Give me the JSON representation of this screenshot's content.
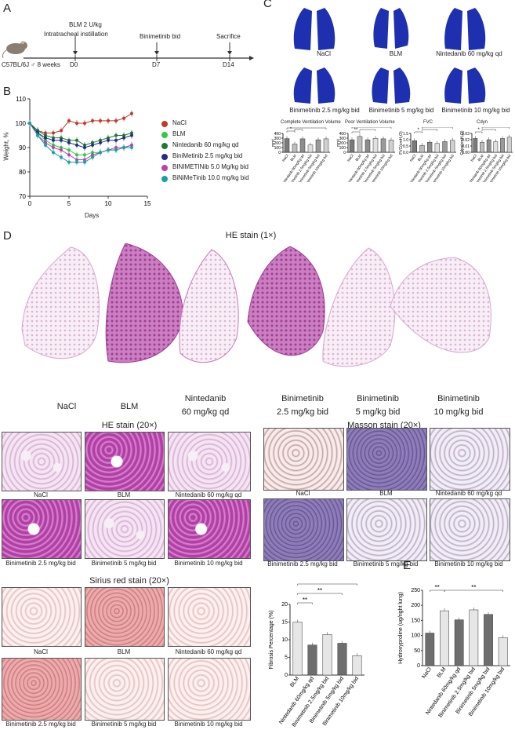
{
  "panels": {
    "A": "A",
    "B": "B",
    "C": "C",
    "D": "D",
    "E": "E"
  },
  "panelA": {
    "dose": "BLM 2 U/kg",
    "instillation": "Intratracheal instillation",
    "treatment": "Binimetinib bid",
    "sacrifice": "Sacrifice",
    "mouse": "C57BL/6J ♂ 8 weeks",
    "ticks": [
      "D0",
      "D7",
      "D14"
    ]
  },
  "panelB": {
    "ylabel": "Weight, %",
    "xlabel": "Days",
    "yticks": [
      "110",
      "100",
      "90",
      "80",
      "70"
    ],
    "xticks": [
      "0",
      "5",
      "10",
      "15"
    ],
    "legend": [
      {
        "label": "NaCl",
        "color": "#c0392b"
      },
      {
        "label": "BLM",
        "color": "#2ecc40"
      },
      {
        "label": "Nintedanib 60 mg/kg qd",
        "color": "#1e7a2e"
      },
      {
        "label": "BiniMetinib 2.5 mg/kg bid",
        "color": "#1f2d8a"
      },
      {
        "label": "BINIMETINib 5.0 Mg/kg bid",
        "color": "#c23bb5"
      },
      {
        "label": "BiNiMeTinib 10.0 mg/kg bid",
        "color": "#17a2a2"
      }
    ]
  },
  "panelC": {
    "lungs": [
      "NaCl",
      "BLM",
      "Nintedanib 60 mg/kg qd",
      "Binimetinib 2.5 mg/kg bid",
      "Binimetinib 5 mg/kg bid",
      "Binimetinib 10 mg/kg bid"
    ],
    "chart_titles": [
      "Complete Ventilation Volume",
      "Poor Ventilation Volume",
      "FVC",
      "Cdyn"
    ],
    "ylabels": [
      "mm³",
      "mm³",
      "FVC(cmH₂O)",
      "Cdyn(cmH₂O)"
    ],
    "xcats": [
      "NaCl",
      "BLM",
      "Nintedanib 60mg/kg qd",
      "Binimetinib 2.5mg/kg bid",
      "Binimetinib 5mg/kg bid",
      "Binimetinib 10mg/kg bid"
    ],
    "yticks_cvv": [
      "400",
      "300",
      "200",
      "100",
      "0"
    ],
    "yticks_pvv": [
      "400",
      "300",
      "200",
      "100",
      "0"
    ],
    "yticks_fvc": [
      "1.5",
      "1.0",
      "0.5",
      "0.0"
    ],
    "yticks_cdyn": [
      "0.03",
      "0.02",
      "0.01",
      "0.00"
    ],
    "stars": [
      "*",
      "*",
      "*",
      "**",
      "*",
      "**",
      "*",
      "**",
      "***",
      "*",
      "*",
      "*"
    ]
  },
  "panelD": {
    "he_title": "HE stain (1×)",
    "groups": [
      "NaCl",
      "BLM",
      "Nintedanib\n60 mg/kg qd",
      "Binimetinib\n2.5 mg/kg bid",
      "Binimetinib\n5 mg/kg bid",
      "Binimetinib\n10 mg/kg bid"
    ],
    "he20": "HE stain (20×)",
    "masson20": "Masson stain (20×)",
    "sirius20": "Sirius red stain (20×)",
    "captions": [
      "NaCl",
      "BLM",
      "Nintedanib 60 mg/kg qd",
      "Binimetinib 2.5 mg/kg bid",
      "Binimetinib 5 mg/kg bid",
      "Binimetinib 10 mg/kg bid"
    ],
    "fib_ylabel": "Fibrosis Percentage (%)",
    "fib_yticks": [
      "20",
      "15",
      "10",
      "5",
      "0"
    ],
    "fib_stars": [
      "****",
      "**",
      "**"
    ]
  },
  "panelE": {
    "ylabel": "Hydroxyproline (ug/right lung)",
    "yticks": [
      "250",
      "200",
      "150",
      "100",
      "50",
      "0"
    ],
    "stars": [
      "**",
      "**"
    ]
  },
  "chart_data": [
    {
      "type": "line",
      "ylabel": "Weight, %",
      "xlabel": "Days",
      "ylim": [
        70,
        110
      ],
      "xlim": [
        0,
        15
      ],
      "x": [
        0,
        1,
        2,
        3,
        4,
        5,
        6,
        7,
        8,
        9,
        10,
        11,
        12,
        13
      ],
      "series": [
        {
          "name": "NaCl",
          "values": [
            100,
            97,
            96,
            96,
            97,
            101,
            100,
            100,
            101,
            101,
            101,
            101,
            102,
            104
          ]
        },
        {
          "name": "BLM",
          "values": [
            100,
            96,
            93,
            91,
            90,
            89,
            87,
            87,
            88,
            88,
            89,
            89,
            90,
            91
          ]
        },
        {
          "name": "Nintedanib 60 mg/kg qd",
          "values": [
            100,
            97,
            95,
            94,
            94,
            93,
            93,
            91,
            92,
            93,
            94,
            95,
            95,
            96
          ]
        },
        {
          "name": "BiniMetinib 2.5 mg/kg bid",
          "values": [
            100,
            96,
            94,
            93,
            93,
            92,
            91,
            90,
            91,
            92,
            93,
            93,
            94,
            95
          ]
        },
        {
          "name": "BINIMETINib 5.0 Mg/kg bid",
          "values": [
            100,
            95,
            92,
            90,
            89,
            87,
            85,
            85,
            87,
            88,
            89,
            90,
            90,
            91
          ]
        },
        {
          "name": "BiNiMeTinib 10.0 mg/kg bid",
          "values": [
            100,
            95,
            91,
            88,
            86,
            84,
            84,
            84,
            86,
            88,
            89,
            89,
            90,
            90
          ]
        }
      ]
    },
    {
      "type": "bar",
      "title": "Complete Ventilation Volume",
      "categories": [
        "NaCl",
        "BLM",
        "Nintedanib 60mg/kg qd",
        "Binimetinib 2.5mg/kg bid",
        "Binimetinib 5mg/kg bid",
        "Binimetinib 10mg/kg bid"
      ],
      "values": [
        290,
        175,
        285,
        155,
        265,
        285
      ],
      "ylim": [
        0,
        400
      ]
    },
    {
      "type": "bar",
      "title": "Poor Ventilation Volume",
      "categories": [
        "NaCl",
        "BLM",
        "Nintedanib 60mg/kg qd",
        "Binimetinib 2.5mg/kg bid",
        "Binimetinib 5mg/kg bid",
        "Binimetinib 10mg/kg bid"
      ],
      "values": [
        265,
        335,
        265,
        295,
        285,
        260
      ],
      "ylim": [
        0,
        400
      ]
    },
    {
      "type": "bar",
      "title": "FVC",
      "categories": [
        "NaCl",
        "BLM",
        "Nintedanib 60mg/kg qd",
        "Binimetinib 2.5mg/kg bid",
        "Binimetinib 5mg/kg bid",
        "Binimetinib 10mg/kg bid"
      ],
      "values": [
        0.92,
        0.55,
        0.8,
        0.7,
        0.85,
        0.95
      ],
      "ylim": [
        0,
        1.5
      ]
    },
    {
      "type": "bar",
      "title": "Cdyn",
      "categories": [
        "NaCl",
        "BLM",
        "Nintedanib 60mg/kg qd",
        "Binimetinib 2.5mg/kg bid",
        "Binimetinib 5mg/kg bid",
        "Binimetinib 10mg/kg bid"
      ],
      "values": [
        0.022,
        0.016,
        0.02,
        0.017,
        0.022,
        0.024
      ],
      "ylim": [
        0,
        0.03
      ]
    },
    {
      "type": "bar",
      "ylabel": "Fibrosis Percentage (%)",
      "categories": [
        "BLM",
        "Nintedanib 60mg/kg qd",
        "Binimetinib 2.5mg/kg bid",
        "Binimetinib 5mg/kg bid",
        "Binimetinib 10mg/kg bid"
      ],
      "values": [
        15,
        8.5,
        11.5,
        9,
        5.5
      ],
      "ylim": [
        0,
        20
      ]
    },
    {
      "type": "bar",
      "ylabel": "Hydroxyproline (ug/right lung)",
      "categories": [
        "NaCl",
        "BLM",
        "Nintedanib 60mg/kg qd",
        "Binimetinib 2.5mg/kg bid",
        "Binimetinib 5mg/kg bid",
        "Binimetinib 10mg/kg bid"
      ],
      "values": [
        108,
        182,
        152,
        185,
        170,
        93
      ],
      "ylim": [
        0,
        250
      ]
    }
  ],
  "colors": {
    "lung_blue": "#1e2fb0",
    "bar_dark": "#666666",
    "bar_light": "#e8e8e8"
  }
}
